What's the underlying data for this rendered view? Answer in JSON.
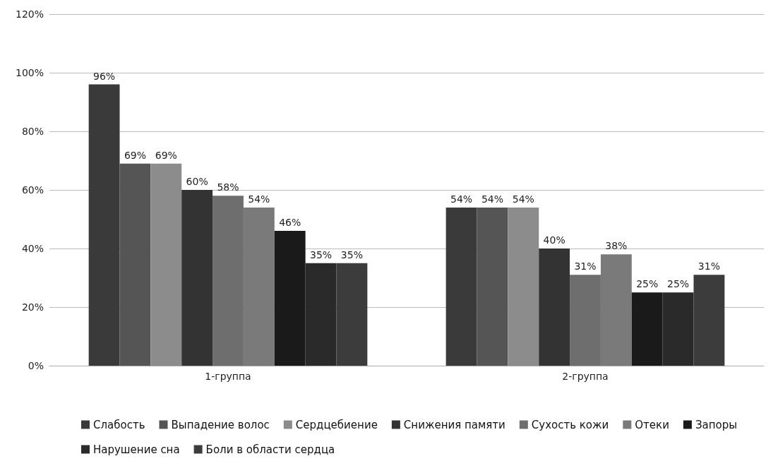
{
  "chart_data": {
    "type": "bar",
    "categories": [
      "1-группа",
      "2-группа"
    ],
    "series": [
      {
        "name": "Слабость",
        "color": "#3a3a3a",
        "values": [
          96,
          54
        ],
        "value_labels": [
          "96%",
          "54%"
        ]
      },
      {
        "name": "Выпадение волос",
        "color": "#555555",
        "values": [
          69,
          54
        ],
        "value_labels": [
          "69%",
          "54%"
        ]
      },
      {
        "name": "Сердцебиение",
        "color": "#8c8c8c",
        "values": [
          69,
          54
        ],
        "value_labels": [
          "69%",
          "54%"
        ]
      },
      {
        "name": "Снижения памяти",
        "color": "#333333",
        "values": [
          60,
          40
        ],
        "value_labels": [
          "60%",
          "40%"
        ]
      },
      {
        "name": "Сухость кожи",
        "color": "#6e6e6e",
        "values": [
          58,
          31
        ],
        "value_labels": [
          "58%",
          "31%"
        ]
      },
      {
        "name": "Отеки",
        "color": "#7a7a7a",
        "values": [
          54,
          38
        ],
        "value_labels": [
          "54%",
          "38%"
        ]
      },
      {
        "name": "Запоры",
        "color": "#1a1a1a",
        "values": [
          46,
          25
        ],
        "value_labels": [
          "46%",
          "25%"
        ]
      },
      {
        "name": "Нарушение сна",
        "color": "#2a2a2a",
        "values": [
          35,
          25
        ],
        "value_labels": [
          "35%",
          "25%"
        ]
      },
      {
        "name": "Боли в области сердца",
        "color": "#3c3c3c",
        "values": [
          35,
          31
        ],
        "value_labels": [
          "35%",
          "31%"
        ]
      }
    ],
    "ylim": [
      0,
      120
    ],
    "yticks": [
      {
        "value": 0,
        "label": "0%"
      },
      {
        "value": 20,
        "label": "20%"
      },
      {
        "value": 40,
        "label": "40%"
      },
      {
        "value": 60,
        "label": "60%"
      },
      {
        "value": 80,
        "label": "80%"
      },
      {
        "value": 100,
        "label": "100%"
      },
      {
        "value": 120,
        "label": "120%"
      }
    ],
    "grid": "y",
    "legend": "bottom"
  }
}
